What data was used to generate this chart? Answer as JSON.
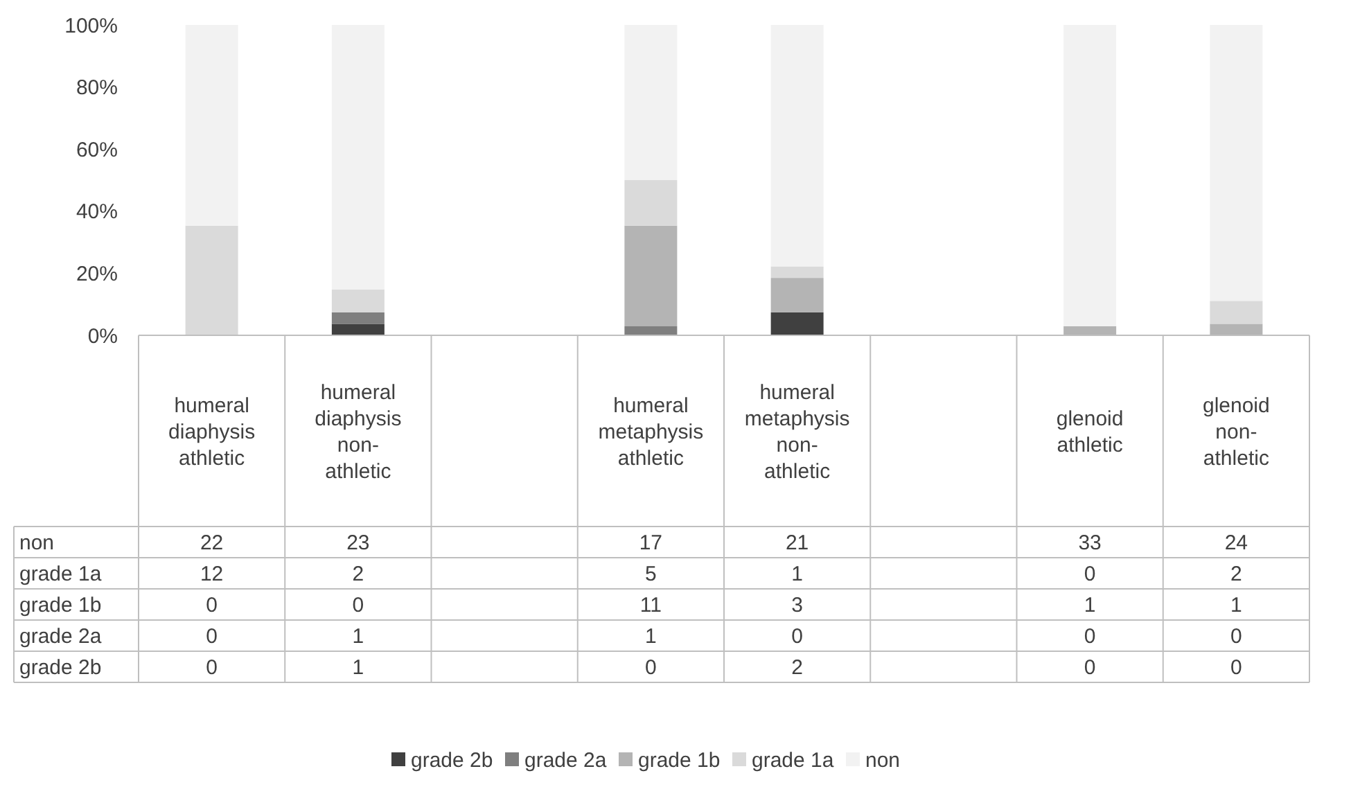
{
  "chart_data": {
    "type": "bar",
    "stacked": true,
    "legend": "bottom",
    "grid": false,
    "categories": [
      "humeral diaphysis athletic",
      "humeral diaphysis non-athletic",
      null,
      "humeral metaphysis athletic",
      "humeral metaphysis non-athletic",
      null,
      "glenoid athletic",
      "glenoid non-athletic"
    ],
    "ylim": [
      0,
      100
    ],
    "yticks": [
      {
        "value": 0,
        "label": "0%"
      },
      {
        "value": 20,
        "label": "20%"
      },
      {
        "value": 40,
        "label": "40%"
      },
      {
        "value": 60,
        "label": "60%"
      },
      {
        "value": 80,
        "label": "80%"
      },
      {
        "value": 100,
        "label": "100%"
      }
    ],
    "series": [
      {
        "name": "grade 2b",
        "color": "#404040",
        "values": [
          0,
          3.7,
          null,
          0,
          7.4,
          null,
          0,
          0
        ]
      },
      {
        "name": "grade 2a",
        "color": "#7f7f7f",
        "values": [
          0,
          3.7,
          null,
          2.9,
          0,
          null,
          0,
          0
        ]
      },
      {
        "name": "grade 1b",
        "color": "#b4b4b4",
        "values": [
          0,
          0,
          null,
          32.4,
          11.1,
          null,
          2.9,
          3.7
        ]
      },
      {
        "name": "grade 1a",
        "color": "#dadada",
        "values": [
          35.3,
          7.4,
          null,
          14.7,
          3.7,
          null,
          0,
          7.4
        ]
      },
      {
        "name": "non",
        "color": "#f2f2f2",
        "values": [
          64.7,
          85.2,
          null,
          50,
          77.8,
          null,
          97.1,
          88.9
        ]
      }
    ],
    "annotations": [
      "22",
      "23",
      "17",
      "21",
      "33",
      "24",
      "12",
      "2",
      "5",
      "1",
      "0",
      "2",
      "0",
      "0",
      "11",
      "3",
      "1",
      "1",
      "0",
      "1",
      "1",
      "0",
      "0",
      "0",
      "0",
      "1",
      "0",
      "2",
      "0",
      "0"
    ]
  }
}
